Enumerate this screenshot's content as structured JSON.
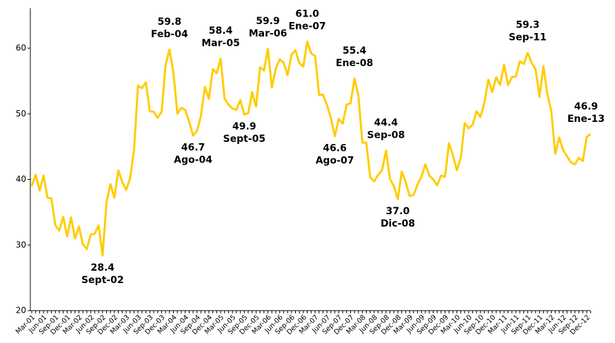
{
  "chart_data": {
    "type": "line",
    "categories": [
      "Mar-01",
      null,
      null,
      "Jun-01",
      null,
      null,
      "Sep-01",
      null,
      null,
      "Dec-01",
      null,
      null,
      "Mar-02",
      null,
      null,
      "Jun-02",
      null,
      null,
      "Sep-02",
      null,
      null,
      "Dec-02",
      null,
      null,
      "Mar-03",
      null,
      null,
      "Jun-03",
      null,
      null,
      "Sep-03",
      null,
      null,
      "Dec-03",
      null,
      null,
      "Mar-04",
      null,
      null,
      "Jun-04",
      null,
      null,
      "Sep-04",
      null,
      null,
      "Dec-04",
      null,
      null,
      "Mar-05",
      null,
      null,
      "Jun-05",
      null,
      null,
      "Sep-05",
      null,
      null,
      "Dec-05",
      null,
      null,
      "Mar-06",
      null,
      null,
      "Jun-06",
      null,
      null,
      "Sep-06",
      null,
      null,
      "Dec-06",
      null,
      null,
      "Mar-07",
      null,
      null,
      "Jun-07",
      null,
      null,
      "Sep-07",
      null,
      null,
      "Dec-07",
      null,
      null,
      "Mar-08",
      null,
      null,
      "Jun-08",
      null,
      null,
      "Sep-08",
      null,
      null,
      "Dec-08",
      null,
      null,
      "Mar-09",
      null,
      null,
      "Jun-09",
      null,
      null,
      "Sep-09",
      null,
      null,
      "Dec-09",
      null,
      null,
      "Mar-10",
      null,
      null,
      "Jun-10",
      null,
      null,
      "Sep-10",
      null,
      null,
      "Dec-10",
      null,
      null,
      "Mar-11",
      null,
      null,
      "Jun-11",
      null,
      null,
      "Sep-11",
      null,
      null,
      "Dec-11",
      null,
      null,
      "Mar-12",
      null,
      null,
      "Jun-12",
      null,
      null,
      "Sep-12",
      null,
      null,
      "Dec-12",
      null
    ],
    "values": [
      39,
      40.7,
      38.3,
      40.6,
      37.2,
      37.1,
      33,
      32.2,
      34.3,
      31.3,
      34.2,
      31,
      32.8,
      30.1,
      29.4,
      31.6,
      31.7,
      33,
      28.4,
      36.5,
      39.3,
      37.2,
      41.4,
      39.6,
      38.4,
      40.2,
      44.5,
      54.3,
      53.9,
      54.8,
      50.4,
      50.3,
      49.4,
      50.3,
      57.4,
      59.8,
      56.3,
      50.0,
      50.9,
      50.6,
      48.8,
      46.7,
      47.4,
      49.7,
      54.1,
      52.3,
      56.8,
      56.2,
      58.4,
      52.3,
      51.4,
      50.8,
      50.6,
      52.1,
      49.9,
      50.1,
      53.3,
      51.1,
      57.1,
      56.6,
      59.9,
      54,
      56.9,
      58.3,
      57.8,
      55.9,
      59,
      59.7,
      57.7,
      57.2,
      61.0,
      59.2,
      58.8,
      52.9,
      52.9,
      51.4,
      49.4,
      46.6,
      49.2,
      48.5,
      51.4,
      51.6,
      55.4,
      52.7,
      45.6,
      45.6,
      40.3,
      39.7,
      40.7,
      41.4,
      44.4,
      40.1,
      39,
      37.0,
      41.2,
      39.6,
      37.5,
      37.6,
      39.2,
      40.4,
      42.3,
      40.6,
      40,
      39.1,
      40.6,
      40.4,
      45.5,
      43.7,
      41.4,
      43.3,
      48.6,
      47.8,
      48.3,
      50.4,
      49.5,
      51.7,
      55.2,
      53.3,
      55.6,
      54.4,
      57.5,
      54.4,
      55.6,
      55.7,
      58,
      57.6,
      59.3,
      57.8,
      56.8,
      52.6,
      57.3,
      53,
      50.4,
      43.9,
      46.4,
      44.5,
      43.5,
      42.6,
      42.3,
      43.3,
      42.8,
      46.5,
      46.9
    ],
    "color": "#ffcc00",
    "ylim": [
      20,
      66
    ],
    "yticks": [
      20,
      30,
      40,
      50,
      60
    ],
    "grid": false,
    "annotations": [
      {
        "label": "28.4",
        "date": "Sept-02"
      },
      {
        "label": "59.8",
        "date": "Feb-04"
      },
      {
        "label": "46.7",
        "date": "Ago-04"
      },
      {
        "label": "58.4",
        "date": "Mar-05"
      },
      {
        "label": "49.9",
        "date": "Sept-05"
      },
      {
        "label": "59.9",
        "date": "Mar-06"
      },
      {
        "label": "61.0",
        "date": "Ene-07"
      },
      {
        "label": "46.6",
        "date": "Ago-07"
      },
      {
        "label": "55.4",
        "date": "Ene-08"
      },
      {
        "label": "44.4",
        "date": "Sep-08"
      },
      {
        "label": "37.0",
        "date": "Dic-08"
      },
      {
        "label": "59.3",
        "date": "Sep-11"
      },
      {
        "label": "46.9",
        "date": "Ene-13"
      }
    ]
  }
}
